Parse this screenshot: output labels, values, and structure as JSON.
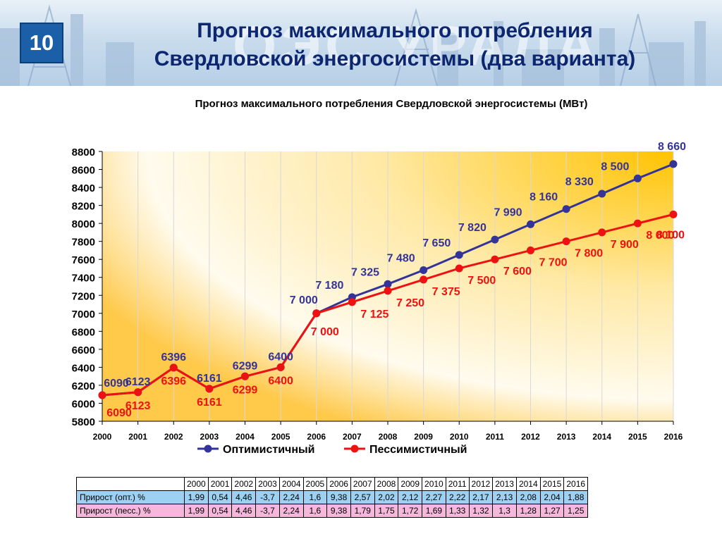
{
  "slide": {
    "number": "10",
    "title_line1": "Прогноз максимального потребления",
    "title_line2": "Свердловской энергосистемы (два варианта)",
    "header_watermark": "ОЭС УРАЛА"
  },
  "colors": {
    "optimistic": "#333399",
    "pessimistic": "#ee1111",
    "optimistic_label": "#333399",
    "pessimistic_label": "#ee1111"
  },
  "chart_data": {
    "type": "line",
    "title": "Прогноз максимального потребления Свердловской энергосистемы (МВт)",
    "xlabel": "",
    "ylabel": "",
    "ylim": [
      5800,
      8800
    ],
    "y_ticks": [
      "5800",
      "6000",
      "6200",
      "6400",
      "6600",
      "6800",
      "7000",
      "7200",
      "7400",
      "7600",
      "7800",
      "8000",
      "8200",
      "8400",
      "8600",
      "8800"
    ],
    "x": [
      "2000",
      "2001",
      "2002",
      "2003",
      "2004",
      "2005",
      "2006",
      "2007",
      "2008",
      "2009",
      "2010",
      "2011",
      "2012",
      "2013",
      "2014",
      "2015",
      "2016"
    ],
    "grid": "vertical",
    "legend": "bottom",
    "series": [
      {
        "name": "Оптимистичный",
        "values": [
          6090,
          6123,
          6396,
          6161,
          6299,
          6400,
          7000,
          7180,
          7325,
          7480,
          7650,
          7820,
          7990,
          8160,
          8330,
          8500,
          8660
        ],
        "labels": [
          "6090",
          "6123",
          "6396",
          "6161",
          "6299",
          "6400",
          "7 000",
          "7 180",
          "7 325",
          "7 480",
          "7 650",
          "7 820",
          "7 990",
          "8 160",
          "8 330",
          "8 500",
          "8 660"
        ]
      },
      {
        "name": "Пессимистичный",
        "values": [
          6090,
          6123,
          6396,
          6161,
          6299,
          6400,
          7000,
          7125,
          7250,
          7375,
          7500,
          7600,
          7700,
          7800,
          7900,
          8000,
          8100
        ],
        "labels": [
          "6090",
          "6123",
          "6396",
          "6161",
          "6299",
          "6400",
          "7 000",
          "7 125",
          "7 250",
          "7 375",
          "7 500",
          "7 600",
          "7 700",
          "7 800",
          "7 900",
          "8 000",
          "8 100"
        ]
      }
    ]
  },
  "table": {
    "years": [
      "2000",
      "2001",
      "2002",
      "2003",
      "2004",
      "2005",
      "2006",
      "2007",
      "2008",
      "2009",
      "2010",
      "2011",
      "2012",
      "2013",
      "2014",
      "2015",
      "2016"
    ],
    "rows": [
      {
        "label": "Прирост (опт.) %",
        "values": [
          "1,99",
          "0,54",
          "4,46",
          "-3,7",
          "2,24",
          "1,6",
          "9,38",
          "2,57",
          "2,02",
          "2,12",
          "2,27",
          "2,22",
          "2,17",
          "2,13",
          "2,08",
          "2,04",
          "1,88"
        ]
      },
      {
        "label": "Прирост (песс.) %",
        "values": [
          "1,99",
          "0,54",
          "4,46",
          "-3,7",
          "2,24",
          "1,6",
          "9,38",
          "1,79",
          "1,75",
          "1,72",
          "1,69",
          "1,33",
          "1,32",
          "1,3",
          "1,28",
          "1,27",
          "1,25"
        ]
      }
    ]
  }
}
